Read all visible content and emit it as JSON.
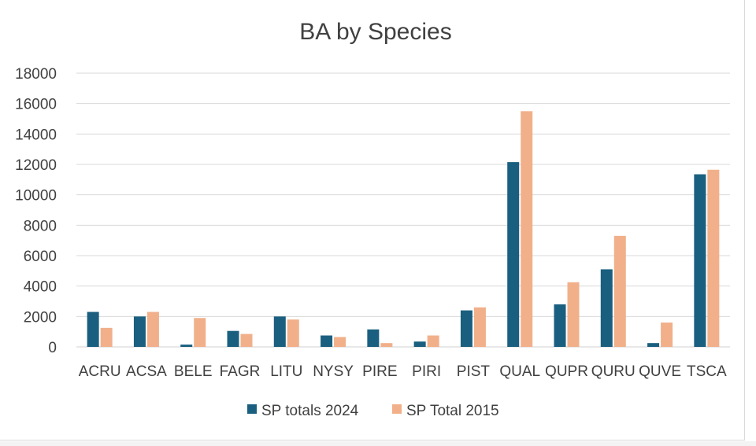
{
  "chart_data": {
    "type": "bar",
    "title": "BA by Species",
    "xlabel": "",
    "ylabel": "",
    "ylim": [
      0,
      18000
    ],
    "yticks": [
      0,
      2000,
      4000,
      6000,
      8000,
      10000,
      12000,
      14000,
      16000,
      18000
    ],
    "grid": true,
    "legend_position": "bottom",
    "categories": [
      "ACRU",
      "ACSA",
      "BELE",
      "FAGR",
      "LITU",
      "NYSY",
      "PIRE",
      "PIRI",
      "PIST",
      "QUAL",
      "QUPR",
      "QURU",
      "QUVE",
      "TSCA"
    ],
    "series": [
      {
        "name": "SP totals 2024",
        "color": "#1a5f7f",
        "values": [
          2300,
          2000,
          150,
          1050,
          2000,
          750,
          1150,
          350,
          2400,
          12150,
          2800,
          5100,
          250,
          11350
        ]
      },
      {
        "name": "SP Total 2015",
        "color": "#f1b08a",
        "values": [
          1250,
          2300,
          1900,
          850,
          1800,
          650,
          250,
          750,
          2600,
          15500,
          4250,
          7300,
          1600,
          11650
        ]
      }
    ]
  }
}
